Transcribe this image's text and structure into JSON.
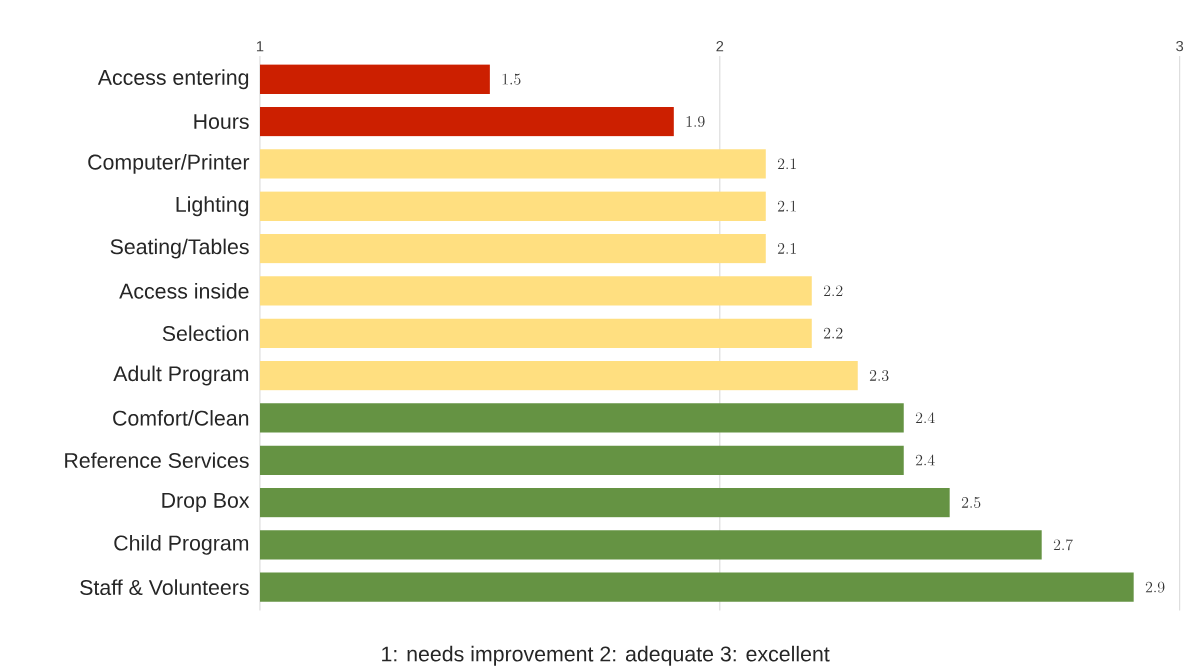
{
  "chart_data": {
    "type": "bar",
    "orientation": "horizontal",
    "categories": [
      "Access entering",
      "Hours",
      "Computer/Printer",
      "Lighting",
      "Seating/Tables",
      "Access inside",
      "Selection",
      "Adult Program",
      "Comfort/Clean",
      "Reference Services",
      "Drop Box",
      "Child Program",
      "Staff & Volunteers"
    ],
    "values": [
      1.5,
      1.9,
      2.1,
      2.1,
      2.1,
      2.2,
      2.2,
      2.3,
      2.4,
      2.4,
      2.5,
      2.7,
      2.9
    ],
    "colors": [
      "#cc1f00",
      "#cc1f00",
      "#ffdf80",
      "#ffdf80",
      "#ffdf80",
      "#ffdf80",
      "#ffdf80",
      "#ffdf80",
      "#659343",
      "#659343",
      "#659343",
      "#659343",
      "#659343"
    ],
    "xlim": [
      1,
      3
    ],
    "xticks": [
      1,
      2,
      3
    ],
    "grid": "x",
    "data_labels": true,
    "annotations": [
      "1: needs improvement   2: adequate    3: excellent"
    ]
  }
}
